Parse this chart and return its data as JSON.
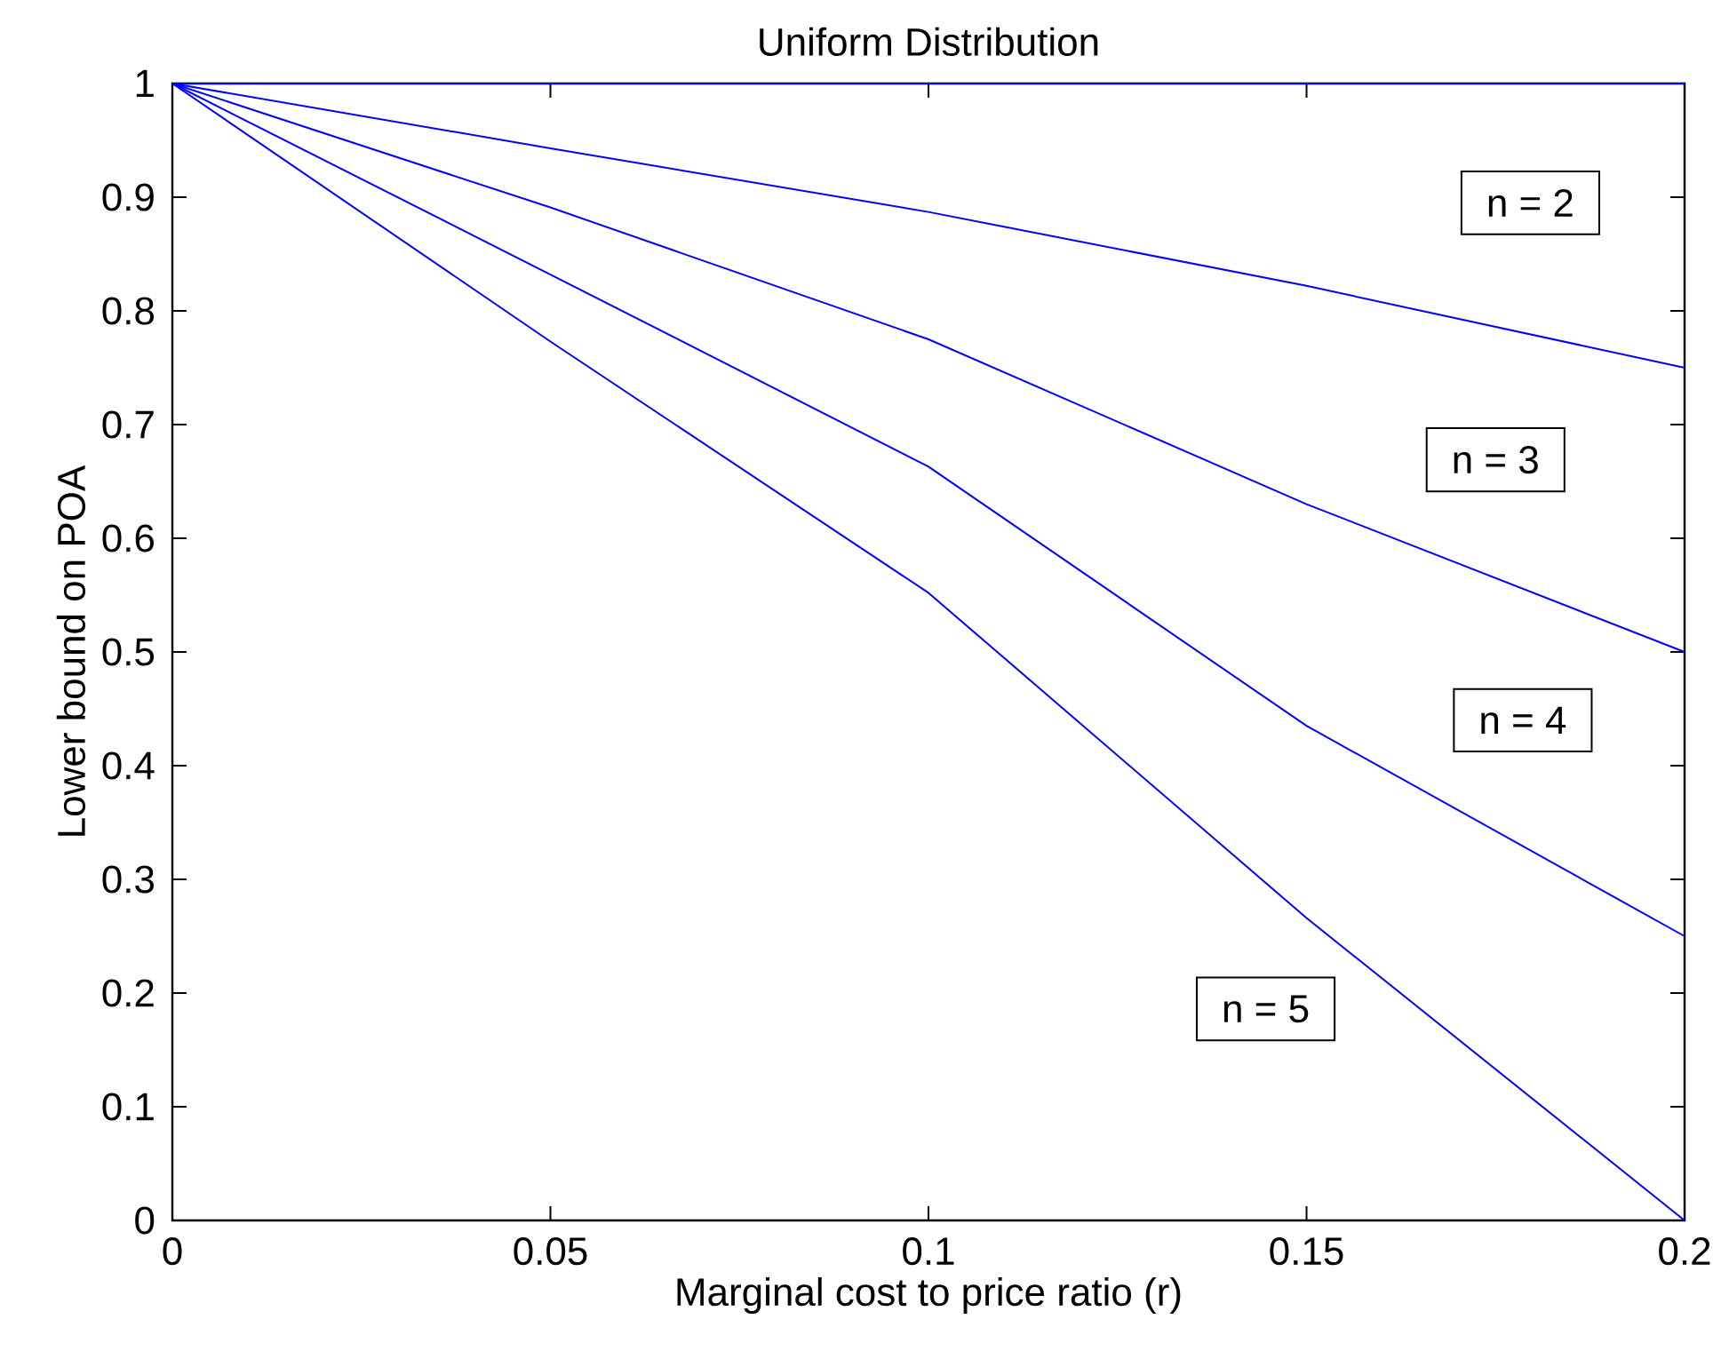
{
  "chart_data": {
    "type": "line",
    "title": "Uniform Distribution",
    "xlabel": "Marginal cost to price ratio (r)",
    "ylabel": "Lower bound on POA",
    "x": [
      0,
      0.05,
      0.1,
      0.15,
      0.2
    ],
    "series": [
      {
        "color": "#0000ff",
        "values": [
          1,
          1,
          1,
          1,
          1
        ]
      },
      {
        "color": "#0000ff",
        "values": [
          1,
          0.943,
          0.887,
          0.822,
          0.75
        ]
      },
      {
        "color": "#0000ff",
        "values": [
          1,
          0.891,
          0.775,
          0.63,
          0.5
        ]
      },
      {
        "color": "#0000ff",
        "values": [
          1,
          0.832,
          0.663,
          0.435,
          0.25
        ]
      },
      {
        "color": "#0000ff",
        "values": [
          1,
          0.773,
          0.552,
          0.266,
          0
        ]
      }
    ],
    "annotations": [
      "n = 2",
      "n = 3",
      "n = 4",
      "n = 5"
    ],
    "xlim": [
      0,
      0.2
    ],
    "ylim": [
      0,
      1
    ],
    "xticks": [
      0,
      0.05,
      0.1,
      0.15,
      0.2
    ],
    "yticks": [
      0,
      0.1,
      0.2,
      0.3,
      0.4,
      0.5,
      0.6,
      0.7,
      0.8,
      0.9,
      1
    ]
  }
}
